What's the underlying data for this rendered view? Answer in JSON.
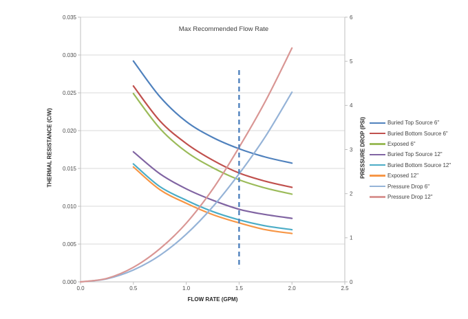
{
  "chart_data": {
    "type": "line",
    "title": "Max Recommended Flow Rate",
    "xlabel": "FLOW RATE (GPM)",
    "ylabel_left": "THERMAL RESISTANCE (C/W)",
    "ylabel_right": "PRESSURE DROP (PSI)",
    "xlim": [
      0,
      2.5
    ],
    "ylim_left": [
      0,
      0.035
    ],
    "ylim_right": [
      0,
      6
    ],
    "x_ticks": [
      "0.0",
      "0.5",
      "1.0",
      "1.5",
      "2.0",
      "2.5"
    ],
    "y_ticks_left": [
      "0.000",
      "0.005",
      "0.010",
      "0.015",
      "0.020",
      "0.025",
      "0.030",
      "0.035"
    ],
    "y_ticks_right": [
      "0",
      "1",
      "2",
      "3",
      "4",
      "5",
      "6"
    ],
    "grid": true,
    "legend_position": "right",
    "annotation": {
      "name": "max-recommended-flow-line",
      "x": 1.5,
      "y_from": 0.0018,
      "y_to": 0.028,
      "axis": "left",
      "style": "dashed",
      "color": "#4F81BD"
    },
    "series": [
      {
        "name": "Buried Top Source 6\"",
        "axis": "left",
        "color": "#4F81BD",
        "x": [
          0.5,
          0.75,
          1.0,
          1.25,
          1.5,
          1.75,
          2.0
        ],
        "y": [
          0.0292,
          0.0245,
          0.0212,
          0.0191,
          0.0176,
          0.0165,
          0.0157
        ]
      },
      {
        "name": "Buried Bottom Source 6\"",
        "axis": "left",
        "color": "#C0504D",
        "x": [
          0.5,
          0.75,
          1.0,
          1.25,
          1.5,
          1.75,
          2.0
        ],
        "y": [
          0.0259,
          0.0213,
          0.0183,
          0.0161,
          0.0144,
          0.0133,
          0.0125
        ]
      },
      {
        "name": "Exposed 6\"",
        "axis": "left",
        "color": "#9BBB59",
        "x": [
          0.5,
          0.75,
          1.0,
          1.25,
          1.5,
          1.75,
          2.0
        ],
        "y": [
          0.0249,
          0.0203,
          0.0172,
          0.0151,
          0.0135,
          0.0124,
          0.0116
        ]
      },
      {
        "name": "Buried Top Source 12\"",
        "axis": "left",
        "color": "#8064A2",
        "x": [
          0.5,
          0.75,
          1.0,
          1.25,
          1.5,
          1.75,
          2.0
        ],
        "y": [
          0.0172,
          0.0143,
          0.0123,
          0.0108,
          0.0096,
          0.0089,
          0.0084
        ]
      },
      {
        "name": "Buried Bottom Source 12\"",
        "axis": "left",
        "color": "#4BACC6",
        "x": [
          0.5,
          0.75,
          1.0,
          1.25,
          1.5,
          1.75,
          2.0
        ],
        "y": [
          0.0156,
          0.0126,
          0.0108,
          0.0093,
          0.0082,
          0.0074,
          0.0069
        ]
      },
      {
        "name": "Exposed 12\"",
        "axis": "left",
        "color": "#F79646",
        "x": [
          0.5,
          0.75,
          1.0,
          1.25,
          1.5,
          1.75,
          2.0
        ],
        "y": [
          0.0152,
          0.0122,
          0.0104,
          0.0089,
          0.0078,
          0.0069,
          0.0064
        ]
      },
      {
        "name": "Pressure Drop 6\"",
        "axis": "right",
        "color": "#95B3D7",
        "x": [
          0,
          0.25,
          0.5,
          0.75,
          1.0,
          1.25,
          1.5,
          1.75,
          2.0
        ],
        "y": [
          0,
          0.07,
          0.27,
          0.6,
          1.08,
          1.7,
          2.45,
          3.3,
          4.3
        ]
      },
      {
        "name": "Pressure Drop 12\"",
        "axis": "right",
        "color": "#D99694",
        "x": [
          0,
          0.25,
          0.5,
          0.75,
          1.0,
          1.25,
          1.5,
          1.75,
          2.0
        ],
        "y": [
          0,
          0.08,
          0.33,
          0.75,
          1.33,
          2.1,
          3.05,
          4.1,
          5.3
        ]
      }
    ],
    "colors": {
      "gridline": "#D9D9D9",
      "axis_line": "#BFBFBF",
      "tick_text": "#4d4d4d",
      "title_text": "#404040"
    }
  }
}
